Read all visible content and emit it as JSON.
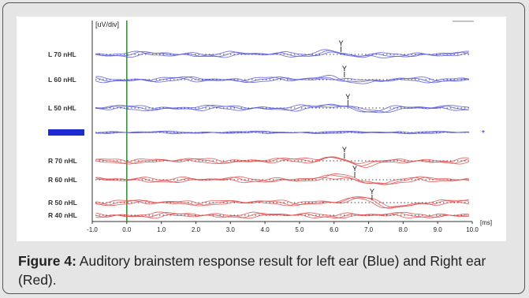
{
  "chart_data": {
    "type": "line",
    "title": "",
    "ylabel": "[uV/div]",
    "xlabel": "[ms]",
    "xlim": [
      -1.0,
      10.0
    ],
    "x_ticks": [
      "-1.0",
      "0.0",
      "1.0",
      "2.0",
      "3.0",
      "4.0",
      "5.0",
      "6.0",
      "7.0",
      "8.0",
      "9.0",
      "10.0"
    ],
    "stimulus_onset_ms": 0.0,
    "grid": false,
    "colors": {
      "left": "#5b5bdc",
      "right": "#e0504f",
      "onset": "#2e8b2e",
      "marker": "#000000"
    },
    "series": [
      {
        "name": "L 70 nHL",
        "ear": "left",
        "wave_v_latency_ms": 6.2
      },
      {
        "name": "L 60 nHL",
        "ear": "left",
        "wave_v_latency_ms": 6.3
      },
      {
        "name": "L 50 nHL",
        "ear": "left",
        "wave_v_latency_ms": 6.4
      },
      {
        "name": "",
        "ear": "left",
        "wave_v_latency_ms": null,
        "highlighted": true
      },
      {
        "name": "R 70 nHL",
        "ear": "right",
        "wave_v_latency_ms": 6.3
      },
      {
        "name": "R 60 nHL",
        "ear": "right",
        "wave_v_latency_ms": 6.6
      },
      {
        "name": "R 50 nHL",
        "ear": "right",
        "wave_v_latency_ms": 7.1
      },
      {
        "name": "R 40 nHL",
        "ear": "right",
        "wave_v_latency_ms": null
      }
    ],
    "peak_marker_label": "Y",
    "side_marker": "*"
  },
  "caption": {
    "label": "Figure 4:",
    "text": " Auditory brainstem response result for left ear (Blue) and Right ear (Red)."
  }
}
